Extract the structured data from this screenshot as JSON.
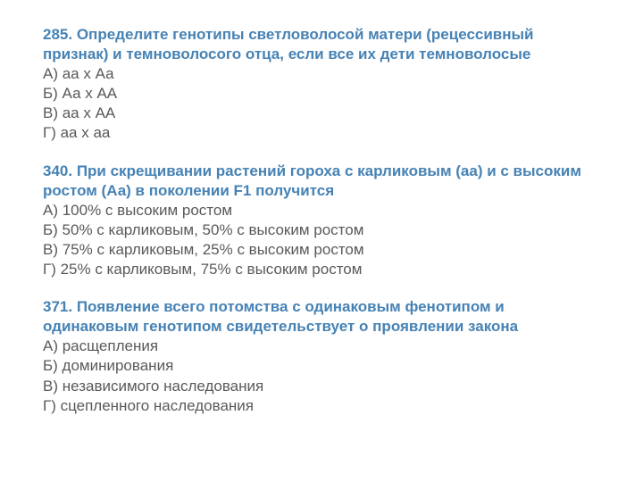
{
  "questions": [
    {
      "number": "285.",
      "text": "Определите генотипы светловолосой матери (рецессивный признак) и темноволосого отца, если все их дети темноволосые",
      "options": [
        "А) аа х Аа",
        "Б) Аа х АА",
        "В) аа х АА",
        "Г) аа х аа"
      ]
    },
    {
      "number": "340.",
      "text": "При скрещивании растений гороха с карликовым (аа) и с высоким ростом (Аа) в поколении F1 получится",
      "options": [
        "А) 100% с высоким ростом",
        "Б) 50% с карликовым, 50% с высоким ростом",
        "В) 75% с карликовым, 25% с высоким ростом",
        "Г) 25% с карликовым, 75% с высоким ростом"
      ]
    },
    {
      "number": "371.",
      "text": "Появление всего потомства с одинаковым фенотипом и одинаковым генотипом свидетельствует о проявлении закона",
      "options": [
        "А) расщепления",
        "Б) доминирования",
        "В) независимого наследования",
        "Г) сцепленного наследования"
      ]
    }
  ],
  "colors": {
    "title_color": "#4682b4",
    "text_color": "#595959",
    "background": "#ffffff"
  },
  "typography": {
    "font_family": "Arial",
    "font_size_pt": 13,
    "title_weight": "bold"
  }
}
